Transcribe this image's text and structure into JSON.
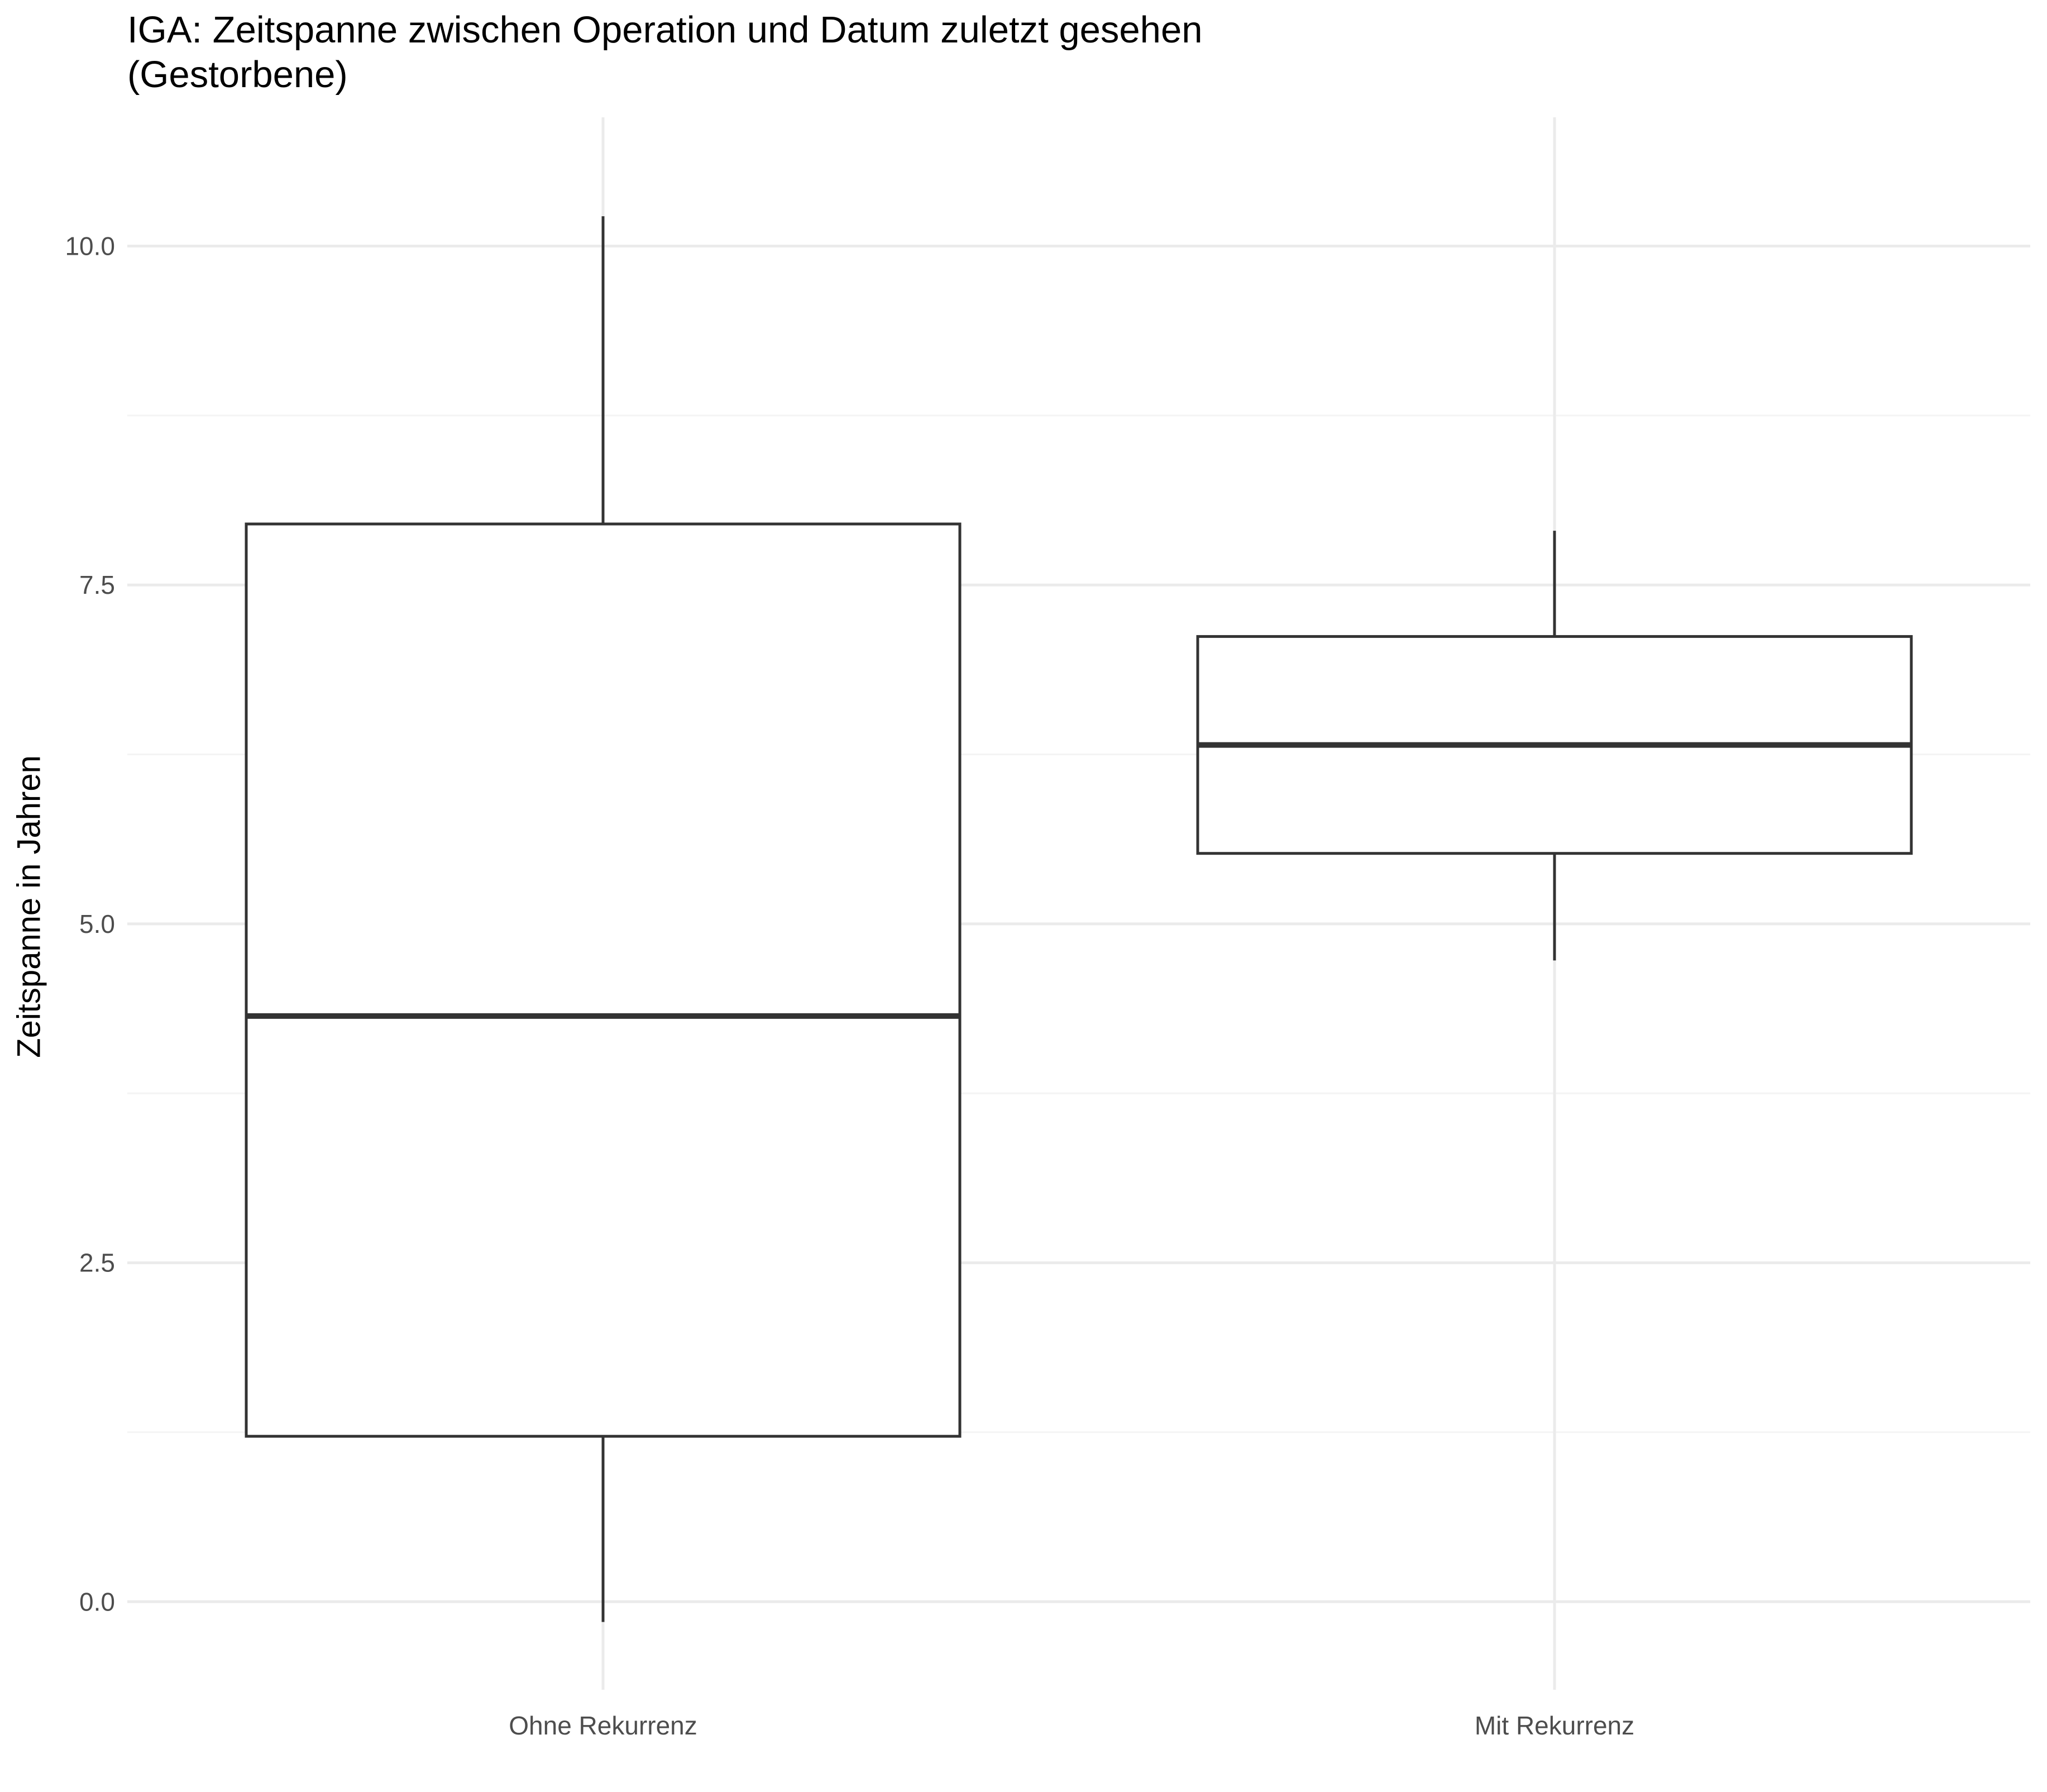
{
  "chart_data": {
    "type": "boxplot",
    "title_lines": [
      "IGA: Zeitspanne zwischen Operation und Datum zuletzt gesehen",
      "(Gestorbene)"
    ],
    "xlabel": "",
    "ylabel": "Zeitspanne in Jahren",
    "categories": [
      "Ohne Rekurrenz",
      "Mit Rekurrenz"
    ],
    "y_ticks": [
      0.0,
      2.5,
      5.0,
      7.5,
      10.0
    ],
    "y_tick_labels": [
      "0.0",
      "2.5",
      "5.0",
      "7.5",
      "10.0"
    ],
    "ylim": [
      -0.65,
      10.95
    ],
    "grid": true,
    "legend": "none",
    "boxes": [
      {
        "category": "Ohne Rekurrenz",
        "whisker_low": -0.15,
        "q1": 1.22,
        "median": 4.32,
        "q3": 7.95,
        "whisker_high": 10.22
      },
      {
        "category": "Mit Rekurrenz",
        "whisker_low": 4.73,
        "q1": 5.52,
        "median": 6.32,
        "q3": 7.12,
        "whisker_high": 7.9
      }
    ],
    "colors": {
      "box_stroke": "#333333",
      "box_fill": "#ffffff",
      "grid_major": "#ebebeb",
      "grid_minor": "#f4f4f4",
      "tick_text": "#4d4d4d"
    }
  }
}
